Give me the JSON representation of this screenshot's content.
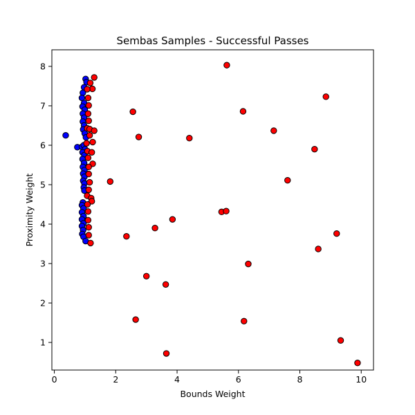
{
  "chart_data": {
    "type": "scatter",
    "title": "Sembas Samples - Successful Passes",
    "xlabel": "Bounds Weight",
    "ylabel": "Proximity Weight",
    "xlim": [
      -0.08,
      10.4
    ],
    "ylim": [
      0.3,
      8.42
    ],
    "xticks": [
      0,
      2,
      4,
      6,
      8,
      10
    ],
    "yticks": [
      1,
      2,
      3,
      4,
      5,
      6,
      7,
      8
    ],
    "grid": false,
    "colors": {
      "series_a": "#0000ff",
      "series_b": "#ff0000",
      "edge": "#000000"
    },
    "series": [
      {
        "color": "#0000ff",
        "points": [
          [
            1.02,
            7.68
          ],
          [
            1.05,
            7.6
          ],
          [
            0.97,
            7.47
          ],
          [
            0.93,
            7.33
          ],
          [
            0.9,
            7.2
          ],
          [
            0.97,
            7.07
          ],
          [
            0.92,
            6.98
          ],
          [
            0.99,
            6.9
          ],
          [
            0.93,
            6.8
          ],
          [
            0.97,
            6.7
          ],
          [
            0.93,
            6.6
          ],
          [
            0.97,
            6.5
          ],
          [
            0.94,
            6.4
          ],
          [
            0.99,
            6.3
          ],
          [
            1.03,
            6.2
          ],
          [
            0.37,
            6.25
          ],
          [
            0.75,
            5.95
          ],
          [
            0.9,
            5.96
          ],
          [
            0.96,
            6.0
          ],
          [
            1.0,
            5.9
          ],
          [
            0.92,
            5.82
          ],
          [
            0.98,
            5.75
          ],
          [
            0.92,
            5.65
          ],
          [
            0.97,
            5.55
          ],
          [
            0.93,
            5.45
          ],
          [
            0.98,
            5.37
          ],
          [
            0.94,
            5.28
          ],
          [
            0.98,
            5.2
          ],
          [
            0.94,
            5.1
          ],
          [
            0.98,
            5.03
          ],
          [
            0.96,
            4.93
          ],
          [
            0.98,
            4.85
          ],
          [
            0.93,
            4.55
          ],
          [
            0.9,
            4.48
          ],
          [
            0.95,
            4.4
          ],
          [
            0.9,
            4.3
          ],
          [
            0.95,
            4.2
          ],
          [
            0.9,
            4.12
          ],
          [
            0.95,
            4.02
          ],
          [
            0.9,
            3.95
          ],
          [
            0.94,
            3.85
          ],
          [
            0.91,
            3.75
          ],
          [
            0.95,
            3.68
          ],
          [
            1.02,
            3.57
          ]
        ]
      },
      {
        "color": "#ff0000",
        "points": [
          [
            1.3,
            7.72
          ],
          [
            1.17,
            7.58
          ],
          [
            1.24,
            7.43
          ],
          [
            1.07,
            7.42
          ],
          [
            1.1,
            7.2
          ],
          [
            1.12,
            7.01
          ],
          [
            1.1,
            6.8
          ],
          [
            1.12,
            6.62
          ],
          [
            1.07,
            6.43
          ],
          [
            1.15,
            6.41
          ],
          [
            1.3,
            6.37
          ],
          [
            1.15,
            6.25
          ],
          [
            1.25,
            6.08
          ],
          [
            1.05,
            6.05
          ],
          [
            1.08,
            5.85
          ],
          [
            1.22,
            5.82
          ],
          [
            1.1,
            5.68
          ],
          [
            1.25,
            5.53
          ],
          [
            1.12,
            5.45
          ],
          [
            1.12,
            5.27
          ],
          [
            1.15,
            5.06
          ],
          [
            1.12,
            4.87
          ],
          [
            1.07,
            4.72
          ],
          [
            1.2,
            4.66
          ],
          [
            1.22,
            4.58
          ],
          [
            1.08,
            4.5
          ],
          [
            1.1,
            4.32
          ],
          [
            1.1,
            4.1
          ],
          [
            1.12,
            3.92
          ],
          [
            1.12,
            3.72
          ],
          [
            1.18,
            3.52
          ],
          [
            5.62,
            8.03
          ],
          [
            8.85,
            7.23
          ],
          [
            2.56,
            6.85
          ],
          [
            6.15,
            6.86
          ],
          [
            7.15,
            6.37
          ],
          [
            2.75,
            6.21
          ],
          [
            4.4,
            6.18
          ],
          [
            8.48,
            5.9
          ],
          [
            1.82,
            5.08
          ],
          [
            7.6,
            5.11
          ],
          [
            5.45,
            4.31
          ],
          [
            5.6,
            4.33
          ],
          [
            3.85,
            4.12
          ],
          [
            3.28,
            3.9
          ],
          [
            2.35,
            3.69
          ],
          [
            9.2,
            3.76
          ],
          [
            8.6,
            3.37
          ],
          [
            6.32,
            2.99
          ],
          [
            3.0,
            2.68
          ],
          [
            3.63,
            2.47
          ],
          [
            2.65,
            1.58
          ],
          [
            6.18,
            1.54
          ],
          [
            9.33,
            1.05
          ],
          [
            3.65,
            0.72
          ],
          [
            9.88,
            0.48
          ]
        ]
      }
    ]
  }
}
